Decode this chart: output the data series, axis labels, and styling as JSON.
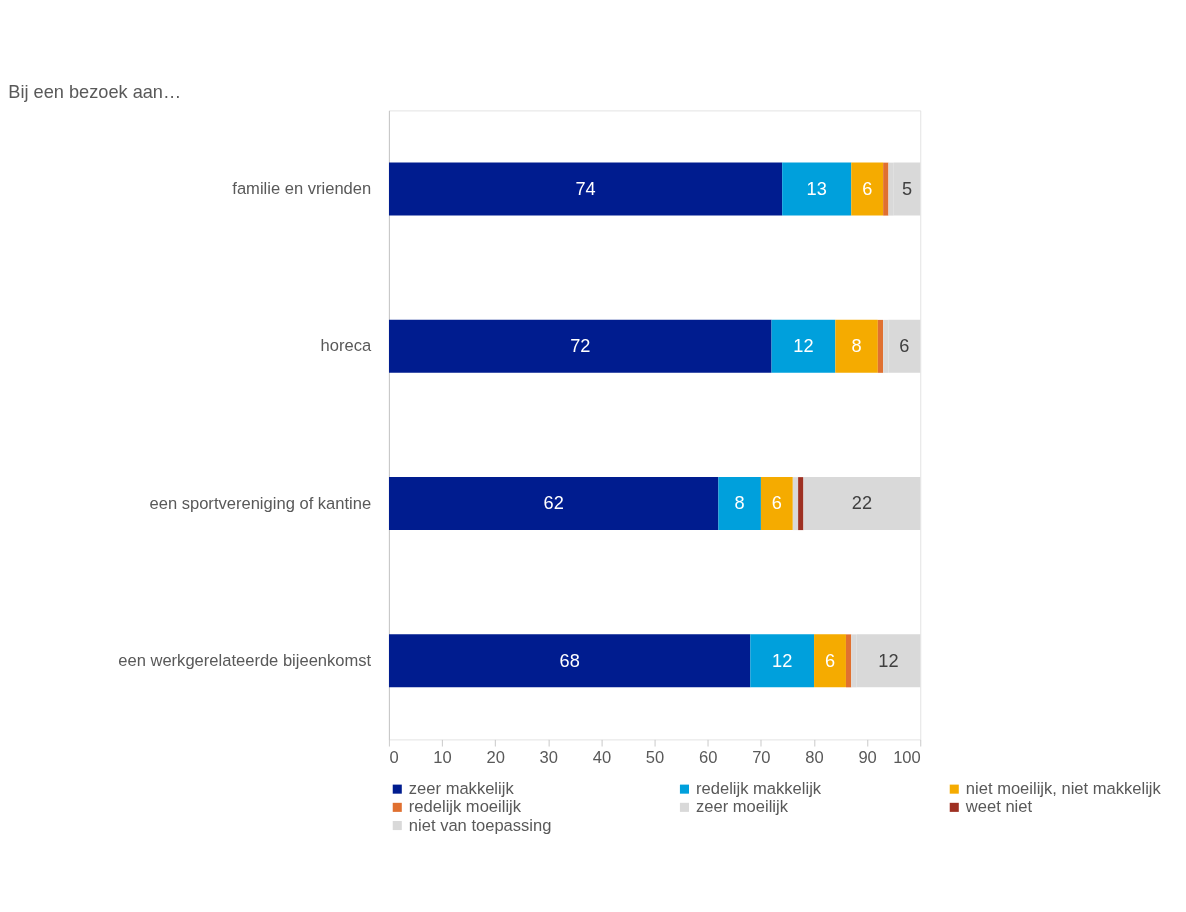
{
  "chart_data": {
    "type": "bar",
    "orientation": "horizontal",
    "stacked": true,
    "title": "Bij een bezoek aan…",
    "categories": [
      "familie en vrienden",
      "horeca",
      "een sportvereniging of kantine",
      "een werkgerelateerde bijeenkomst"
    ],
    "series": [
      {
        "name": "zeer makkelijk",
        "color": "#001c8f",
        "values": [
          74,
          72,
          62,
          68
        ],
        "value_labels": [
          "74",
          "72",
          "62",
          "68"
        ]
      },
      {
        "name": "redelijk makkelijk",
        "color": "#00a0dc",
        "values": [
          13,
          12,
          8,
          12
        ],
        "value_labels": [
          "13",
          "12",
          "8",
          "12"
        ]
      },
      {
        "name": "niet moeilijk, niet makkelijk",
        "color": "#f5ab00",
        "values": [
          6,
          8,
          6,
          6
        ],
        "value_labels": [
          "6",
          "8",
          "6",
          "6"
        ]
      },
      {
        "name": "redelijk moeilijk",
        "color": "#e07030",
        "values": [
          1,
          1,
          0,
          1
        ],
        "value_labels": [
          null,
          null,
          null,
          null
        ]
      },
      {
        "name": "zeer moeilijk",
        "color": "#d9d9d9",
        "values": [
          1,
          1,
          1,
          1
        ],
        "value_labels": [
          null,
          null,
          null,
          null
        ]
      },
      {
        "name": "weet niet",
        "color": "#9e3022",
        "values": [
          0,
          0,
          1,
          0
        ],
        "value_labels": [
          null,
          null,
          null,
          null
        ]
      },
      {
        "name": "niet van toepassing",
        "color": "#d9d9d9",
        "values": [
          5,
          6,
          22,
          12
        ],
        "value_labels": [
          "5",
          "6",
          "22",
          "12"
        ]
      }
    ],
    "xlim": [
      0,
      100
    ],
    "xticks": [
      0,
      10,
      20,
      30,
      40,
      50,
      60,
      70,
      80,
      90,
      100
    ],
    "grid": false,
    "legend": "bottom"
  }
}
